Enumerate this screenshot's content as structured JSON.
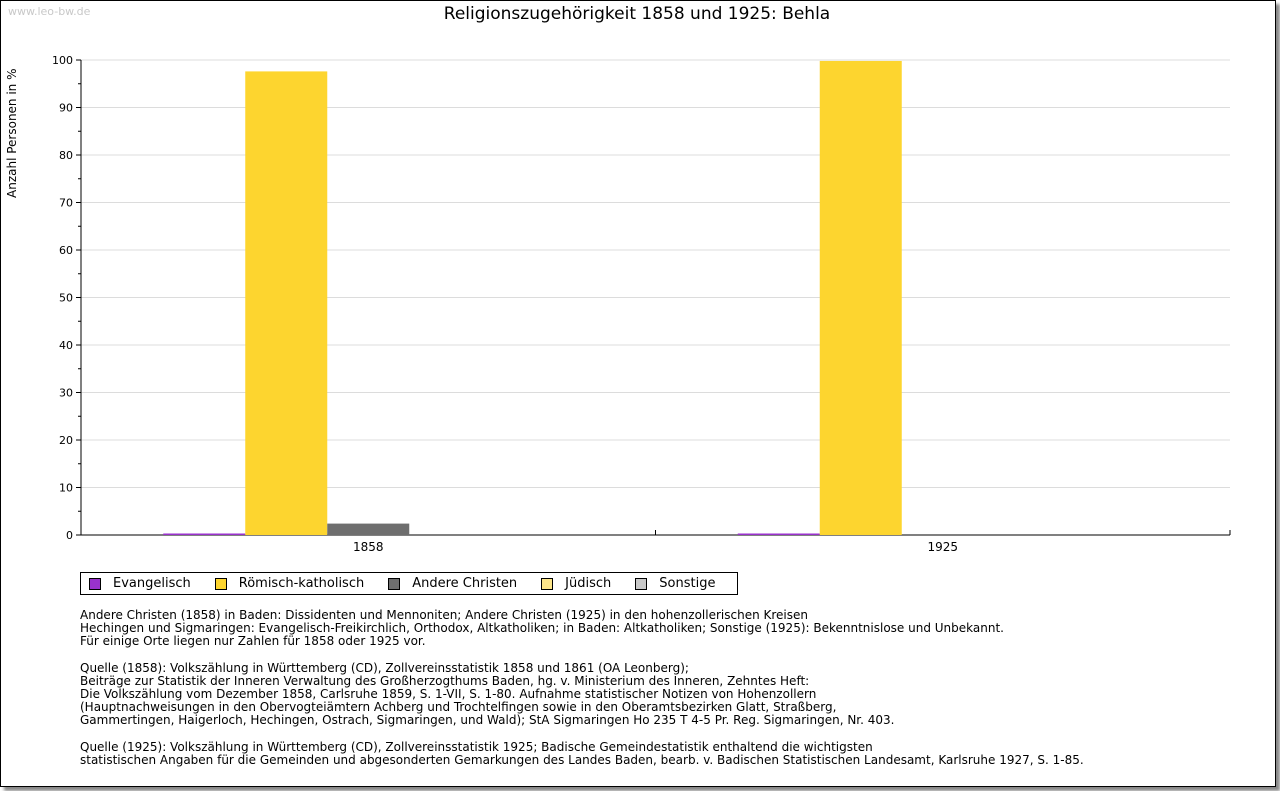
{
  "watermark": "www.leo-bw.de",
  "chart_data": {
    "type": "bar",
    "title": "Religionszugehörigkeit 1858 und 1925: Behla",
    "xlabel": "",
    "ylabel": "Anzahl Personen in %",
    "ylim": [
      0,
      100
    ],
    "yticks": [
      "0",
      "10",
      "20",
      "30",
      "40",
      "50",
      "60",
      "70",
      "80",
      "90",
      "100"
    ],
    "grid": true,
    "legend_position": "bottom",
    "categories": [
      "1858",
      "1925"
    ],
    "series": [
      {
        "name": "Evangelisch",
        "color": "#9932cc",
        "values": [
          0.2,
          0.2
        ]
      },
      {
        "name": "Römisch-katholisch",
        "color": "#fdd52f",
        "values": [
          97.6,
          99.8
        ]
      },
      {
        "name": "Andere Christen",
        "color": "#6e6e6e",
        "values": [
          2.4,
          0
        ]
      },
      {
        "name": "Jüdisch",
        "color": "#fde68a",
        "values": [
          0,
          0
        ]
      },
      {
        "name": "Sonstige",
        "color": "#c8c8c8",
        "values": [
          0,
          0
        ]
      }
    ]
  },
  "notes": [
    "Andere Christen (1858) in Baden: Dissidenten und Mennoniten; Andere Christen (1925) in den hohenzollerischen Kreisen\nHechingen und Sigmaringen: Evangelisch-Freikirchlich, Orthodox, Altkatholiken; in Baden: Altkatholiken; Sonstige (1925): Bekenntnislose und Unbekannt.\nFür einige Orte liegen nur Zahlen für 1858 oder 1925 vor.",
    "Quelle (1858): Volkszählung in Württemberg (CD), Zollvereinsstatistik 1858 und 1861 (OA Leonberg);\nBeiträge zur Statistik der Inneren Verwaltung des Großherzogthums Baden, hg. v. Ministerium des Inneren, Zehntes Heft:\nDie Volkszählung vom Dezember 1858, Carlsruhe 1859, S. 1-VII, S. 1-80. Aufnahme statistischer Notizen von Hohenzollern\n(Hauptnachweisungen in den Obervogteiämtern Achberg und Trochtelfingen sowie in den Oberamtsbezirken Glatt, Straßberg,\nGammertingen, Haigerloch, Hechingen, Ostrach, Sigmaringen, und Wald); StA Sigmaringen Ho 235 T 4-5 Pr. Reg. Sigmaringen, Nr. 403.",
    "Quelle (1925): Volkszählung in Württemberg (CD), Zollvereinsstatistik 1925; Badische Gemeindestatistik enthaltend die wichtigsten\nstatistischen Angaben für die Gemeinden und abgesonderten Gemarkungen des Landes Baden, bearb. v. Badischen Statistischen Landesamt, Karlsruhe 1927, S. 1-85."
  ]
}
